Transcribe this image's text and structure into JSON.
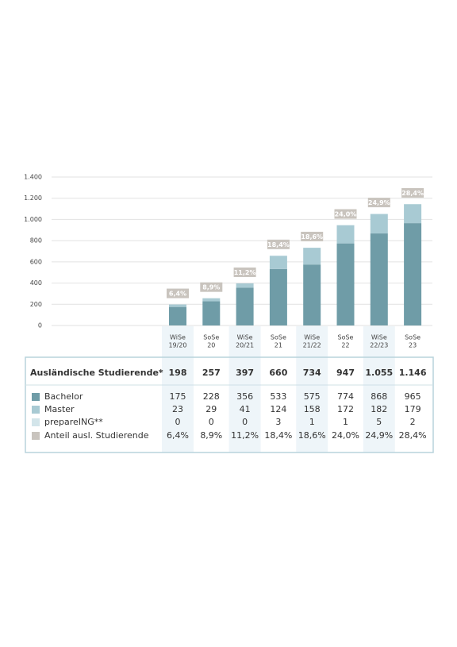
{
  "chart_data": {
    "type": "stacked_bar",
    "categories": [
      [
        "WiSe",
        "19/20"
      ],
      [
        "SoSe",
        "20"
      ],
      [
        "WiSe",
        "20/21"
      ],
      [
        "SoSe",
        "21"
      ],
      [
        "WiSe",
        "21/22"
      ],
      [
        "SoSe",
        "22"
      ],
      [
        "WiSe",
        "22/23"
      ],
      [
        "SoSe",
        "23"
      ]
    ],
    "ylim": [
      0,
      1400
    ],
    "yticks": [
      0,
      200,
      400,
      600,
      800,
      {
        "value": 1000,
        "label": "1.000"
      },
      {
        "value": 1200,
        "label": "1.200"
      },
      {
        "value": 1400,
        "label": "1.400"
      }
    ],
    "grid": true,
    "series": [
      {
        "name": "Bachelor",
        "color": "#6f9ca7",
        "values": [
          175,
          228,
          356,
          533,
          575,
          774,
          868,
          965
        ]
      },
      {
        "name": "Master",
        "color": "#a8cad3",
        "values": [
          23,
          29,
          41,
          124,
          158,
          172,
          182,
          179
        ]
      },
      {
        "name": "prepareING**",
        "color": "#d3e5ea",
        "values": [
          0,
          0,
          0,
          3,
          1,
          1,
          5,
          2
        ]
      }
    ],
    "totals": {
      "name": "Ausländische Studierende*",
      "values": [
        198,
        257,
        397,
        660,
        734,
        947,
        1055,
        1146
      ],
      "value_labels": [
        "198",
        "257",
        "397",
        "660",
        "734",
        "947",
        "1.055",
        "1.146"
      ]
    },
    "share": {
      "name": "Anteil ausl. Studierende",
      "color": "#c9c4be",
      "values": [
        6.4,
        8.9,
        11.2,
        18.4,
        18.6,
        24.0,
        24.9,
        28.4
      ],
      "value_labels": [
        "6,4%",
        "8,9%",
        "11,2%",
        "18,4%",
        "18,6%",
        "24,0%",
        "24,9%",
        "28,4%"
      ]
    }
  }
}
